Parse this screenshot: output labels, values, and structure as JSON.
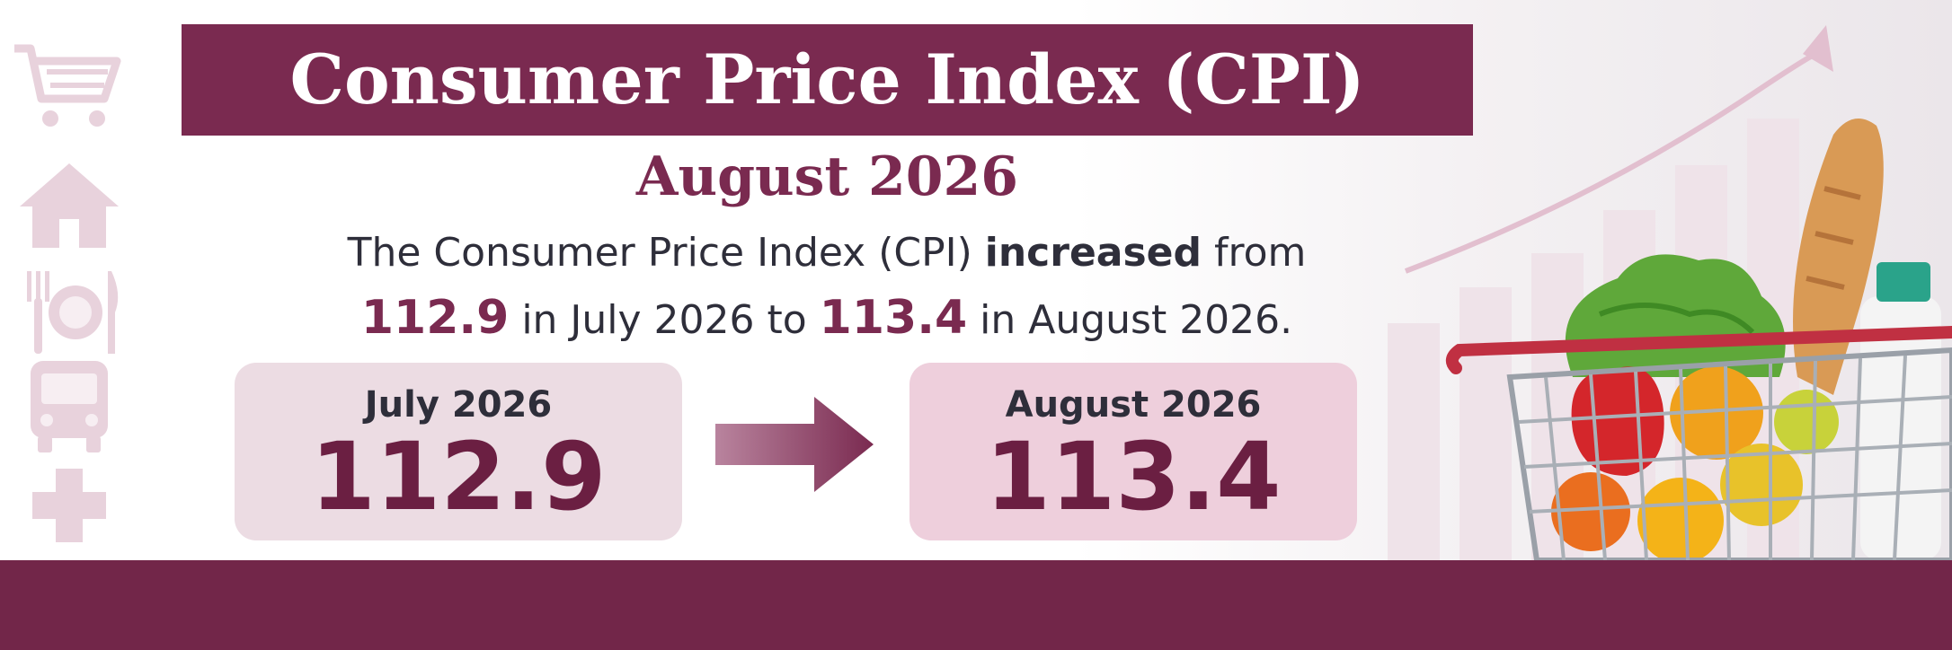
{
  "header": {
    "title": "Consumer Price Index (CPI)",
    "subtitle": "August 2026"
  },
  "description": {
    "line1_prefix": "The Consumer Price Index (CPI) ",
    "line1_emphasis": "increased",
    "line1_suffix": " from",
    "line2_value_from": "112.9",
    "line2_mid": " in July 2026 to ",
    "line2_value_to": "113.4",
    "line2_suffix": " in August 2026."
  },
  "cards": {
    "previous": {
      "label": "July 2026",
      "value": "112.9"
    },
    "current": {
      "label": "August 2026",
      "value": "113.4"
    }
  },
  "side_icons": [
    "shopping-cart-icon",
    "house-icon",
    "plate-cutlery-icon",
    "bus-icon",
    "medical-cross-icon"
  ],
  "colors": {
    "brand": "#7a2a50",
    "footer": "#722649",
    "icon": "#e8d2dc",
    "text": "#2e2e3a"
  }
}
